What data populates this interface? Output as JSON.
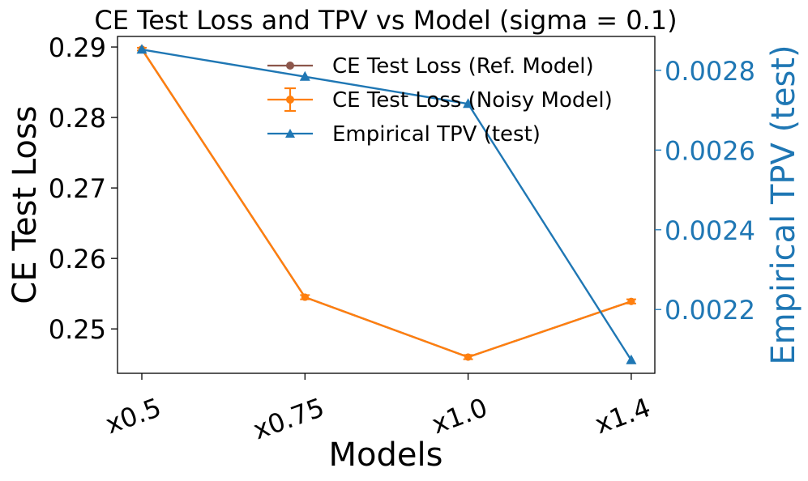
{
  "colors": {
    "ref_model": "#8c564b",
    "noisy_model": "#ff7f0e",
    "tpv": "#1f77b4",
    "axis": "#000000",
    "background": "#ffffff"
  },
  "chart_data": {
    "type": "line",
    "title": "CE Test Loss and TPV vs Model (sigma = 0.1)",
    "xlabel": "Models",
    "ylabel_left": "CE Test Loss",
    "ylabel_right": "Empirical TPV (test)",
    "categories": [
      "x0.5",
      "x0.75",
      "x1.0",
      "x1.4"
    ],
    "ylim_left": [
      0.2437,
      0.2915
    ],
    "ylim_right": [
      0.00204,
      0.002885
    ],
    "yticks_left": [
      0.25,
      0.26,
      0.27,
      0.28,
      0.29
    ],
    "yticks_left_labels": [
      "0.25",
      "0.26",
      "0.27",
      "0.28",
      "0.29"
    ],
    "yticks_right": [
      0.0022,
      0.0024,
      0.0026,
      0.0028
    ],
    "yticks_right_labels": [
      "0.0022",
      "0.0024",
      "0.0026",
      "0.0028"
    ],
    "grid": false,
    "legend_position": "top-center",
    "series": [
      {
        "name": "CE Test Loss (Ref. Model)",
        "axis": "left",
        "marker": "circle",
        "values": [
          0.2897,
          0.2545,
          0.246,
          0.2539
        ]
      },
      {
        "name": "CE Test Loss (Noisy Model)",
        "axis": "left",
        "marker": "circle",
        "errorbar": true,
        "values": [
          0.2897,
          0.2545,
          0.246,
          0.2539
        ],
        "errors": [
          0.0002,
          0.0003,
          0.0003,
          0.0003
        ]
      },
      {
        "name": "Empirical TPV (test)",
        "axis": "right",
        "marker": "triangle",
        "values": [
          0.002852,
          0.002784,
          0.002716,
          0.002073
        ]
      }
    ]
  }
}
